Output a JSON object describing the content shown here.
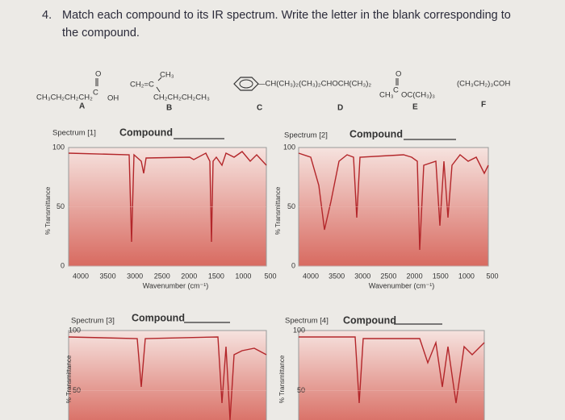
{
  "question": {
    "number": "4.",
    "text": "Match each compound to its IR spectrum. Write the letter in the blank corresponding to the compound."
  },
  "compounds": [
    {
      "parts": [
        "O",
        "CH₃CH₂CH₂CH₂",
        "C",
        "OH"
      ],
      "letter": "A"
    },
    {
      "parts": [
        "CH₃",
        "CH₂=C",
        "CH₂CH₂CH₂CH₃"
      ],
      "letter": "B"
    },
    {
      "parts": [
        "—CH(CH₃)₂"
      ],
      "letter": "C"
    },
    {
      "parts": [
        "(CH₃)₂CHOCH(CH₃)₂"
      ],
      "letter": "D"
    },
    {
      "parts": [
        "O",
        "CH₃",
        "C",
        "OC(CH₃)₃"
      ],
      "letter": "E"
    },
    {
      "parts": [
        "(CH₃CH₂)₃COH"
      ],
      "letter": "F"
    }
  ],
  "spectra": [
    {
      "label": "Spectrum [1]",
      "compound_label": "Compound",
      "y_label": "% Transmittance",
      "y_ticks": [
        "100",
        "50",
        "0"
      ],
      "x_ticks": [
        "4000",
        "3500",
        "3000",
        "2500",
        "2000",
        "1500",
        "1000",
        "500"
      ],
      "x_label": "Wavenumber (cm⁻¹)"
    },
    {
      "label": "Spectrum [2]",
      "compound_label": "Compound",
      "y_label": "% Transmittance",
      "y_ticks": [
        "100",
        "50",
        "0"
      ],
      "x_ticks": [
        "4000",
        "3500",
        "3000",
        "2500",
        "2000",
        "1500",
        "1000",
        "500"
      ],
      "x_label": "Wavenumber (cm⁻¹)"
    },
    {
      "label": "Spectrum [3]",
      "compound_label": "Compound",
      "y_label": "% Transmittance",
      "y_ticks": [
        "100",
        "50"
      ]
    },
    {
      "label": "Spectrum [4]",
      "compound_label": "Compound",
      "y_label": "% Transmittance",
      "y_ticks": [
        "100",
        "50"
      ]
    }
  ]
}
